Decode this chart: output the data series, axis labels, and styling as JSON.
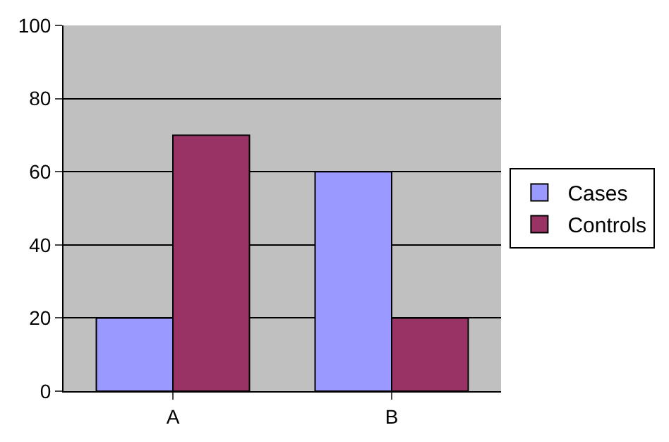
{
  "chart_data": {
    "type": "bar",
    "categories": [
      "A",
      "B"
    ],
    "series": [
      {
        "name": "Cases",
        "color": "#9999ff",
        "values": [
          20,
          60
        ]
      },
      {
        "name": "Controls",
        "color": "#993366",
        "values": [
          70,
          20
        ]
      }
    ],
    "ylim": [
      0,
      100
    ],
    "yticks": [
      0,
      20,
      40,
      60,
      80,
      100
    ],
    "grid": "y",
    "legend": "right"
  }
}
